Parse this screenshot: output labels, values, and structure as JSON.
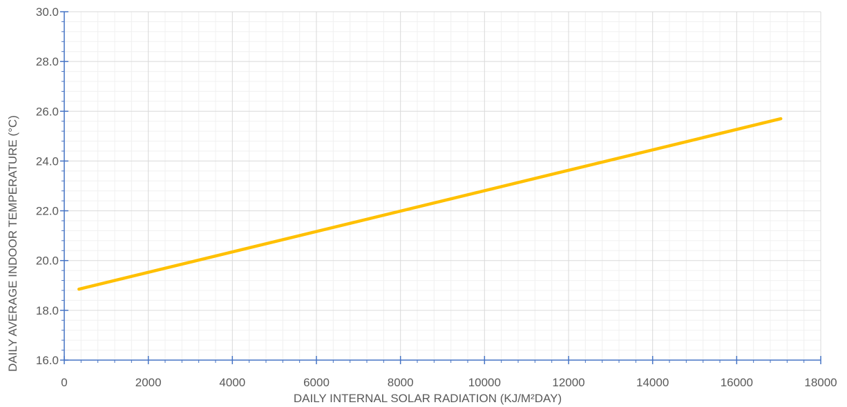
{
  "chart_data": {
    "type": "line",
    "title": "",
    "xlabel": "DAILY INTERNAL SOLAR RADIATION (KJ/M²DAY)",
    "ylabel": "DAILY AVERAGE INDOOR TEMPERATURE (°C)",
    "xlim": [
      0,
      18000
    ],
    "ylim": [
      16.0,
      30.0
    ],
    "x_ticks": [
      "0",
      "2000",
      "4000",
      "6000",
      "8000",
      "10000",
      "12000",
      "14000",
      "16000",
      "18000"
    ],
    "y_ticks": [
      "16.0",
      "18.0",
      "20.0",
      "22.0",
      "24.0",
      "26.0",
      "28.0",
      "30.0"
    ],
    "grid": true,
    "series": [
      {
        "color": "#FFC000",
        "x": [
          350,
          17050
        ],
        "y": [
          18.85,
          25.7
        ]
      }
    ]
  }
}
